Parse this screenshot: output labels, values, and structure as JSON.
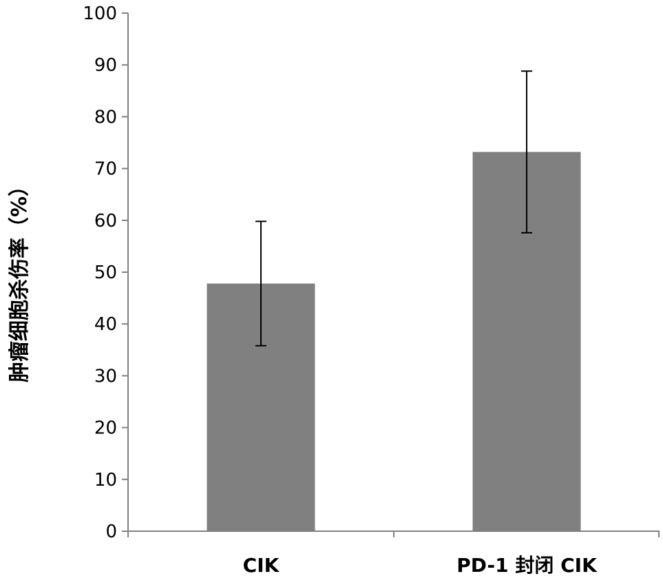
{
  "chart_data": {
    "type": "bar",
    "categories": [
      "CIK",
      "PD-1 封闭 CIK"
    ],
    "values": [
      47.8,
      73.2
    ],
    "errors": [
      12.0,
      15.6
    ],
    "title": "",
    "xlabel": "",
    "ylabel": "肿瘤细胞杀伤率（%）",
    "ylim": [
      0,
      100
    ],
    "yticks": [
      0,
      10,
      20,
      30,
      40,
      50,
      60,
      70,
      80,
      90,
      100
    ],
    "grid": false,
    "legend": "none",
    "bar_color": "#808080",
    "axis_color": "#808080",
    "error_color": "#000000"
  }
}
